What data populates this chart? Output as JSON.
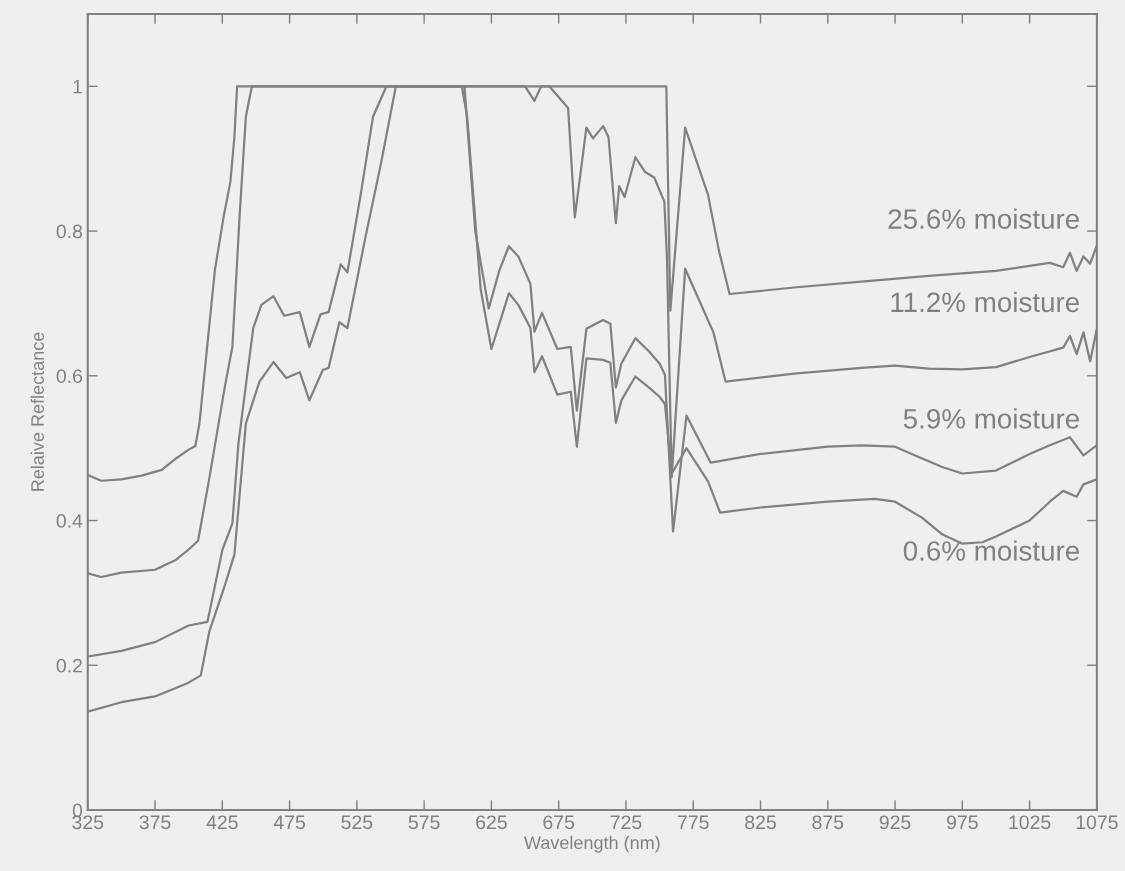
{
  "chart_data": {
    "type": "line",
    "xlabel": "Wavelength (nm)",
    "ylabel": "Relaive Reflectance",
    "xlim": [
      325,
      1075
    ],
    "ylim": [
      0,
      1.1
    ],
    "xticks": [
      325,
      375,
      425,
      475,
      525,
      575,
      625,
      675,
      725,
      775,
      825,
      875,
      925,
      975,
      1025,
      1075
    ],
    "yticks": [
      0,
      0.2,
      0.4,
      0.6,
      0.8,
      1
    ],
    "grid": false,
    "legend": "right",
    "marker": "none",
    "line_style": "solid",
    "series": [
      {
        "name": "25.6% moisture",
        "color": "#808080",
        "x": [
          325,
          335,
          350,
          365,
          380,
          390,
          400,
          405,
          408,
          419.5,
          426,
          431,
          434,
          436,
          500,
          600,
          700,
          755,
          758,
          769,
          786,
          794,
          802,
          850,
          900,
          950,
          1000,
          1040,
          1050,
          1055,
          1060,
          1065,
          1070,
          1075
        ],
        "values": [
          0.463,
          0.455,
          0.457,
          0.462,
          0.47,
          0.485,
          0.498,
          0.503,
          0.534,
          0.746,
          0.82,
          0.868,
          0.93,
          1.0,
          1.0,
          1.0,
          1.0,
          1.0,
          0.69,
          0.943,
          0.85,
          0.774,
          0.713,
          0.722,
          0.73,
          0.738,
          0.745,
          0.756,
          0.75,
          0.77,
          0.745,
          0.765,
          0.755,
          0.78
        ]
      },
      {
        "name": "11.2% moisture",
        "color": "#808080",
        "x": [
          325,
          335,
          350,
          375,
          390,
          400,
          407,
          415.5,
          427,
          432.5,
          438,
          442.5,
          447,
          500,
          600,
          650,
          657,
          662,
          668,
          682,
          687,
          695.6,
          700.5,
          708,
          712,
          717.5,
          720,
          724,
          732,
          739,
          746,
          753.5,
          755.5,
          759,
          769,
          790,
          799,
          850,
          900,
          925,
          950,
          975,
          1000,
          1025,
          1050,
          1055,
          1060,
          1065,
          1070,
          1075
        ],
        "values": [
          0.327,
          0.322,
          0.328,
          0.332,
          0.345,
          0.36,
          0.372,
          0.46,
          0.586,
          0.64,
          0.825,
          0.958,
          1.0,
          1.0,
          1.0,
          1.0,
          0.98,
          1.0,
          1.0,
          0.97,
          0.819,
          0.943,
          0.928,
          0.945,
          0.93,
          0.811,
          0.862,
          0.847,
          0.902,
          0.882,
          0.874,
          0.841,
          0.763,
          0.46,
          0.748,
          0.66,
          0.592,
          0.603,
          0.611,
          0.614,
          0.61,
          0.609,
          0.612,
          0.626,
          0.639,
          0.655,
          0.63,
          0.66,
          0.62,
          0.665
        ]
      },
      {
        "name": "5.9% moisture",
        "color": "#808080",
        "x": [
          325,
          350,
          375,
          400,
          414,
          425,
          432.5,
          437,
          448,
          454,
          463,
          471,
          482.6,
          489.7,
          498,
          504,
          513,
          518,
          528,
          537,
          547,
          602,
          605,
          613,
          623,
          631,
          638,
          645,
          654,
          657,
          662.6,
          674,
          684,
          688.5,
          695.6,
          708,
          713.4,
          717.5,
          721.6,
          732,
          742,
          750,
          754,
          760,
          770,
          788,
          825,
          875,
          900,
          925,
          940,
          960,
          975,
          1000,
          1025,
          1040,
          1055,
          1065,
          1075
        ],
        "values": [
          0.212,
          0.22,
          0.232,
          0.255,
          0.26,
          0.359,
          0.396,
          0.507,
          0.666,
          0.698,
          0.71,
          0.683,
          0.688,
          0.64,
          0.685,
          0.688,
          0.754,
          0.743,
          0.852,
          0.958,
          1.0,
          1.0,
          1.0,
          0.8,
          0.693,
          0.746,
          0.779,
          0.765,
          0.727,
          0.661,
          0.687,
          0.637,
          0.64,
          0.552,
          0.665,
          0.677,
          0.672,
          0.584,
          0.617,
          0.652,
          0.634,
          0.617,
          0.601,
          0.385,
          0.545,
          0.48,
          0.492,
          0.502,
          0.504,
          0.502,
          0.49,
          0.474,
          0.465,
          0.469,
          0.492,
          0.504,
          0.515,
          0.49,
          0.504
        ]
      },
      {
        "name": "0.6% moisture",
        "color": "#808080",
        "x": [
          325,
          350,
          375,
          400,
          409,
          415.4,
          427,
          434,
          442.5,
          452.6,
          463,
          472.5,
          482.6,
          489.7,
          499.7,
          504,
          512,
          518,
          531,
          543,
          554,
          603,
          607,
          617,
          625,
          638,
          645,
          654,
          657,
          662.6,
          674,
          684,
          688.5,
          695.6,
          708,
          713.4,
          717.5,
          721.6,
          732,
          742,
          750,
          754,
          759,
          770,
          786,
          795,
          825,
          875,
          910,
          925,
          945,
          960,
          975,
          990,
          1000,
          1025,
          1040,
          1050,
          1060,
          1065,
          1075
        ],
        "values": [
          0.136,
          0.149,
          0.157,
          0.176,
          0.186,
          0.247,
          0.311,
          0.353,
          0.534,
          0.592,
          0.619,
          0.597,
          0.605,
          0.566,
          0.608,
          0.611,
          0.674,
          0.666,
          0.788,
          0.894,
          1.0,
          1.0,
          0.958,
          0.72,
          0.637,
          0.714,
          0.698,
          0.666,
          0.605,
          0.627,
          0.574,
          0.578,
          0.502,
          0.624,
          0.622,
          0.618,
          0.535,
          0.566,
          0.599,
          0.584,
          0.571,
          0.561,
          0.465,
          0.5,
          0.454,
          0.411,
          0.418,
          0.426,
          0.43,
          0.426,
          0.404,
          0.381,
          0.368,
          0.37,
          0.378,
          0.4,
          0.426,
          0.441,
          0.433,
          0.45,
          0.457
        ]
      }
    ]
  }
}
